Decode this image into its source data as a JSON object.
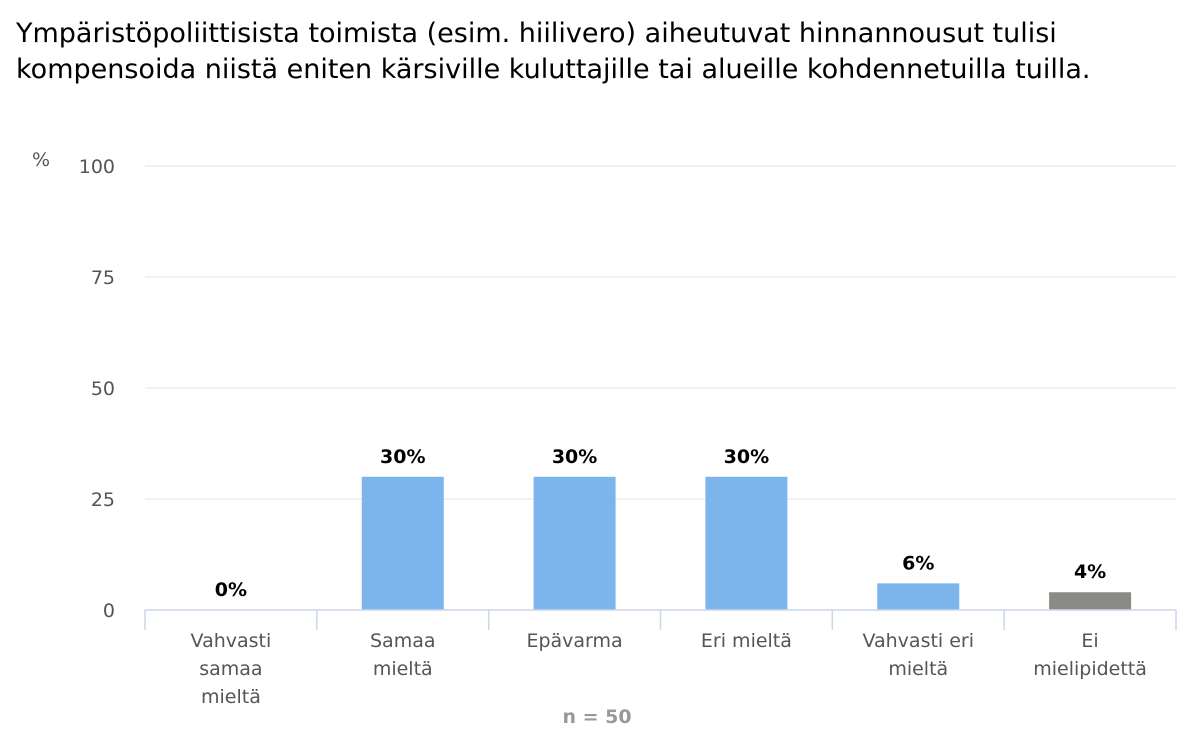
{
  "chart_data": {
    "type": "bar",
    "title": "Ympäristöpoliittisista toimista (esim. hiilivero) aiheutuvat hinnannousut tulisi kompensoida niistä eniten kärsiville kuluttajille tai alueille kohdennetuilla tuilla.",
    "ylabel": "%",
    "xlabel": "",
    "ylim": [
      0,
      100
    ],
    "yticks": [
      0,
      25,
      50,
      75,
      100
    ],
    "grid": true,
    "categories": [
      [
        "Vahvasti",
        "samaa",
        "mieltä"
      ],
      [
        "Samaa",
        "mieltä"
      ],
      [
        "Epävarma"
      ],
      [
        "Eri mieltä"
      ],
      [
        "Vahvasti eri",
        "mieltä"
      ],
      [
        "Ei",
        "mielipidettä"
      ]
    ],
    "values": [
      0,
      30,
      30,
      30,
      6,
      4
    ],
    "value_labels": [
      "0%",
      "30%",
      "30%",
      "30%",
      "6%",
      "4%"
    ],
    "colors": [
      "#7cb5ec",
      "#7cb5ec",
      "#7cb5ec",
      "#7cb5ec",
      "#7cb5ec",
      "#8a8a86"
    ],
    "note": "n = 50"
  }
}
